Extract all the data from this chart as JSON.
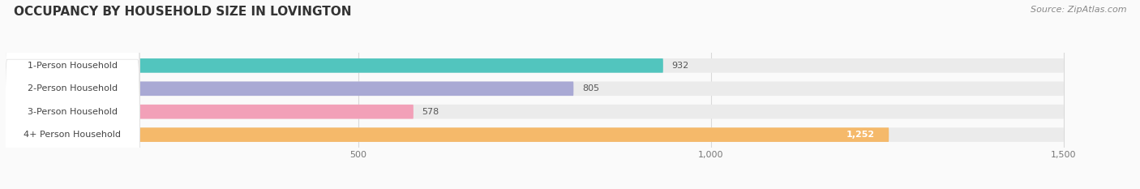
{
  "title": "OCCUPANCY BY HOUSEHOLD SIZE IN LOVINGTON",
  "source": "Source: ZipAtlas.com",
  "categories": [
    "1-Person Household",
    "2-Person Household",
    "3-Person Household",
    "4+ Person Household"
  ],
  "values": [
    932,
    805,
    578,
    1252
  ],
  "bar_colors": [
    "#52C5BE",
    "#A9A9D4",
    "#F2A0B8",
    "#F5B96A"
  ],
  "bg_bar_color": "#EBEBEB",
  "xlim_max": 1600,
  "display_max": 1500,
  "xticks": [
    500,
    1000,
    1500
  ],
  "bar_height": 0.62,
  "figsize": [
    14.06,
    2.33
  ],
  "dpi": 100,
  "bg_color": "#FAFAFA",
  "title_color": "#333333",
  "source_color": "#888888",
  "label_color": "#444444",
  "value_color_inside": "#FFFFFF",
  "value_color_outside": "#555555",
  "grid_color": "#CCCCCC"
}
